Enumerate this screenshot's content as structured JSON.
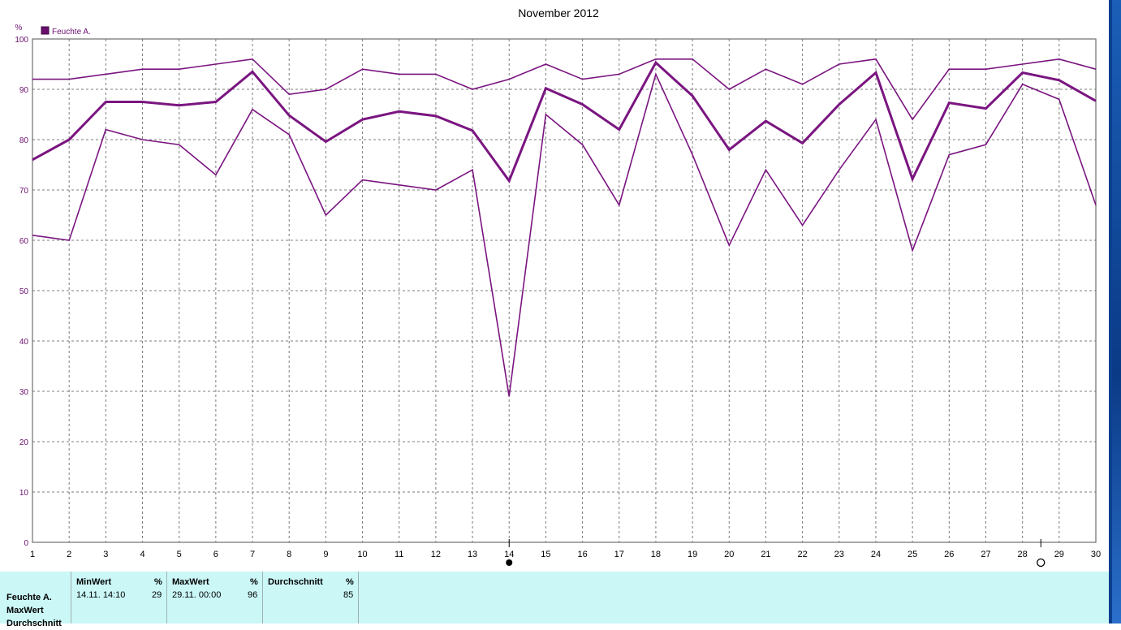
{
  "chart_data": {
    "type": "line",
    "title": "November 2012",
    "ylabel": "%",
    "legend": [
      {
        "name": "Feuchte A.",
        "color": "#6a0e6e"
      }
    ],
    "legend_position": "top-left",
    "grid": true,
    "x": [
      1,
      2,
      3,
      4,
      5,
      6,
      7,
      8,
      9,
      10,
      11,
      12,
      13,
      14,
      15,
      16,
      17,
      18,
      19,
      20,
      21,
      22,
      23,
      24,
      25,
      26,
      27,
      28,
      29,
      30
    ],
    "xlim": [
      1,
      30
    ],
    "ylim": [
      0,
      100
    ],
    "yticks": [
      0,
      10,
      20,
      30,
      40,
      50,
      60,
      70,
      80,
      90,
      100
    ],
    "series": [
      {
        "key": "max",
        "color": "#7a1580",
        "width": 1.6,
        "values": [
          92,
          92,
          93,
          94,
          94,
          95,
          96,
          89,
          90,
          94,
          93,
          93,
          90,
          92,
          95,
          92,
          93,
          96,
          96,
          90,
          94,
          91,
          95,
          96,
          84,
          94,
          94,
          95,
          96,
          94
        ]
      },
      {
        "key": "avg",
        "color": "#7a1580",
        "width": 3,
        "values": [
          76,
          80,
          87.5,
          87.5,
          86.8,
          87.5,
          93.5,
          84.8,
          79.6,
          84,
          85.6,
          84.7,
          81.8,
          71.8,
          90.2,
          87,
          82,
          95.3,
          88.7,
          78,
          83.7,
          79.3,
          87,
          93.3,
          72.2,
          87.3,
          86.2,
          93.3,
          91.8,
          87.7
        ]
      },
      {
        "key": "min",
        "color": "#7a1580",
        "width": 1.6,
        "values": [
          61,
          60,
          82,
          80,
          79,
          73,
          86,
          81,
          65,
          72,
          71,
          70,
          74,
          29,
          85,
          79,
          67,
          93,
          77,
          59,
          74,
          63,
          74,
          84,
          58,
          77,
          79,
          91,
          88,
          67
        ]
      }
    ],
    "min_marker_day": 14,
    "max_marker_day": 28.5
  },
  "stats": {
    "rows": [
      "Feuchte A.",
      "MaxWert",
      "Durchschnitt"
    ],
    "columns": [
      {
        "header": "MinWert",
        "unit": "%",
        "date": "14.11.  14:10",
        "value": "29"
      },
      {
        "header": "MaxWert",
        "unit": "%",
        "date": "29.11.  00:00",
        "value": "96"
      },
      {
        "header": "Durchschnitt",
        "unit": "%",
        "date": "",
        "value": "85"
      }
    ]
  }
}
